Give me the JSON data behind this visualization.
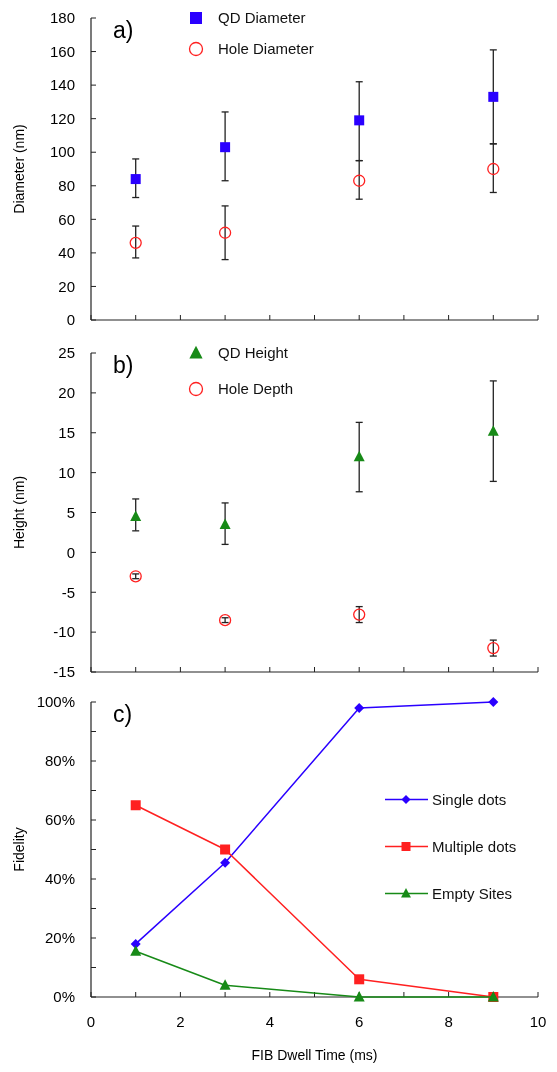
{
  "chart_data": [
    {
      "type": "scatter",
      "title": "a)",
      "ylabel": "Diameter (nm)",
      "xlim": [
        0,
        10
      ],
      "xticks": [
        {
          "value": 0,
          "label": null
        },
        {
          "value": 1,
          "label": null
        },
        {
          "value": 2,
          "label": null
        },
        {
          "value": 3,
          "label": null
        },
        {
          "value": 4,
          "label": null
        },
        {
          "value": 5,
          "label": null
        },
        {
          "value": 6,
          "label": null
        },
        {
          "value": 7,
          "label": null
        },
        {
          "value": 8,
          "label": null
        },
        {
          "value": 9,
          "label": null
        },
        {
          "value": 10,
          "label": null
        }
      ],
      "ylim": [
        0,
        180
      ],
      "yticks": [
        0,
        20,
        40,
        60,
        80,
        100,
        120,
        140,
        160,
        180
      ],
      "tick_labels": "y",
      "legend": "top left",
      "x": [
        1,
        3,
        6,
        9
      ],
      "series": [
        {
          "name": "QD Diameter",
          "color": "#2a00ff",
          "marker": "square",
          "values": [
            84,
            103,
            119,
            133
          ],
          "errors": [
            [
              73,
              96
            ],
            [
              83,
              124
            ],
            [
              95,
              142
            ],
            [
              105,
              161
            ]
          ]
        },
        {
          "name": "Hole Diameter",
          "color": "#ff2020",
          "marker": "circle",
          "values": [
            46,
            52,
            83,
            90
          ],
          "errors": [
            [
              37,
              56
            ],
            [
              36,
              68
            ],
            [
              72,
              95
            ],
            [
              76,
              105
            ]
          ]
        }
      ]
    },
    {
      "type": "scatter",
      "title": "b)",
      "ylabel": "Height (nm)",
      "xlim": [
        0,
        10
      ],
      "xticks": [
        {
          "value": 0,
          "label": null
        },
        {
          "value": 1,
          "label": null
        },
        {
          "value": 2,
          "label": null
        },
        {
          "value": 3,
          "label": null
        },
        {
          "value": 4,
          "label": null
        },
        {
          "value": 5,
          "label": null
        },
        {
          "value": 6,
          "label": null
        },
        {
          "value": 7,
          "label": null
        },
        {
          "value": 8,
          "label": null
        },
        {
          "value": 9,
          "label": null
        },
        {
          "value": 10,
          "label": null
        }
      ],
      "ylim": [
        -15,
        25
      ],
      "yticks": [
        -15,
        -10,
        -5,
        0,
        5,
        10,
        15,
        20,
        25
      ],
      "tick_labels": "y",
      "legend": "top left",
      "x": [
        1,
        3,
        6,
        9
      ],
      "series": [
        {
          "name": "QD Height",
          "color": "#178a17",
          "marker": "triangle",
          "values": [
            4.5,
            3.5,
            12,
            15.2
          ],
          "errors": [
            [
              2.7,
              6.7
            ],
            [
              1,
              6.2
            ],
            [
              7.6,
              16.3
            ],
            [
              8.9,
              21.5
            ]
          ]
        },
        {
          "name": "Hole Depth",
          "color": "#ff2020",
          "marker": "circle",
          "values": [
            -3,
            -8.5,
            -7.8,
            -12
          ],
          "errors": [
            [
              -3.3,
              -2.7
            ],
            [
              -8.8,
              -8.2
            ],
            [
              -8.8,
              -6.8
            ],
            [
              -13,
              -11
            ]
          ]
        }
      ]
    },
    {
      "type": "line",
      "title": "c)",
      "xlabel": "FIB Dwell Time (ms)",
      "ylabel": "Fidelity",
      "xlim": [
        0,
        10
      ],
      "xticks": [
        0,
        {
          "value": 1,
          "label": null
        },
        2,
        {
          "value": 3,
          "label": null
        },
        4,
        {
          "value": 5,
          "label": null
        },
        6,
        {
          "value": 7,
          "label": null
        },
        8,
        {
          "value": 9,
          "label": null
        },
        10
      ],
      "ylim": [
        0,
        100
      ],
      "yticks": [
        {
          "value": 0,
          "label": "0%"
        },
        {
          "value": 10,
          "label": null
        },
        {
          "value": 20,
          "label": "20%"
        },
        {
          "value": 30,
          "label": null
        },
        {
          "value": 40,
          "label": "40%"
        },
        {
          "value": 50,
          "label": null
        },
        {
          "value": 60,
          "label": "60%"
        },
        {
          "value": 70,
          "label": null
        },
        {
          "value": 80,
          "label": "80%"
        },
        {
          "value": 90,
          "label": null
        },
        {
          "value": 100,
          "label": "100%"
        }
      ],
      "legend": "right",
      "x": [
        1,
        3,
        6,
        9
      ],
      "series": [
        {
          "name": "Single dots",
          "color": "#2a00ff",
          "marker": "diamond",
          "values": [
            18,
            45.5,
            98,
            100
          ]
        },
        {
          "name": "Multiple dots",
          "color": "#ff2020",
          "marker": "square",
          "values": [
            65,
            50,
            6,
            0
          ]
        },
        {
          "name": "Empty Sites",
          "color": "#178a17",
          "marker": "triangle",
          "values": [
            15.5,
            4,
            0,
            0
          ]
        }
      ]
    }
  ]
}
